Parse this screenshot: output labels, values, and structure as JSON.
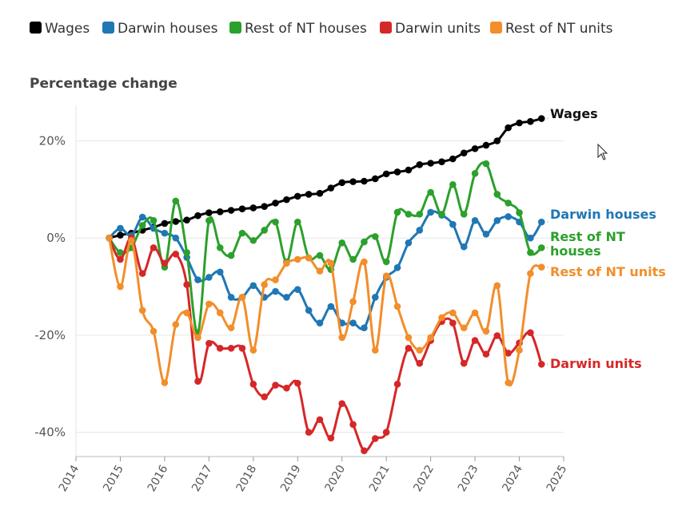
{
  "chart_data": {
    "type": "line",
    "ylabel": "Percentage change",
    "xlabel": "",
    "xlim": [
      2014,
      2025
    ],
    "ylim": [
      -45,
      26
    ],
    "x_ticks": [
      "2014",
      "2015",
      "2016",
      "2017",
      "2018",
      "2019",
      "2020",
      "2021",
      "2022",
      "2023",
      "2024",
      "2025"
    ],
    "y_ticks": [
      {
        "value": 20,
        "label": "20%"
      },
      {
        "value": 0,
        "label": "0%"
      },
      {
        "value": -20,
        "label": "-20%"
      },
      {
        "value": -40,
        "label": "-40%"
      }
    ],
    "legend_position": "top",
    "series": [
      {
        "name": "Wages",
        "end_label": "Wages",
        "color": "#000000",
        "x": [
          2014.75,
          2015.0,
          2015.25,
          2015.5,
          2015.75,
          2016.0,
          2016.25,
          2016.5,
          2016.75,
          2017.0,
          2017.25,
          2017.5,
          2017.75,
          2018.0,
          2018.25,
          2018.5,
          2018.75,
          2019.0,
          2019.25,
          2019.5,
          2019.75,
          2020.0,
          2020.25,
          2020.5,
          2020.75,
          2021.0,
          2021.25,
          2021.5,
          2021.75,
          2022.0,
          2022.25,
          2022.5,
          2022.75,
          2023.0,
          2023.25,
          2023.5,
          2023.75,
          2024.0,
          2024.25,
          2024.5
        ],
        "y": [
          0,
          0.6,
          1.0,
          1.6,
          2.2,
          3.0,
          3.4,
          3.7,
          4.6,
          5.2,
          5.4,
          5.7,
          6.0,
          6.2,
          6.5,
          7.2,
          7.9,
          8.6,
          9.0,
          9.2,
          10.3,
          11.4,
          11.6,
          11.7,
          12.2,
          13.2,
          13.6,
          14.0,
          15.1,
          15.4,
          15.7,
          16.3,
          17.5,
          18.4,
          19.1,
          20.0,
          22.7,
          23.7,
          24.0,
          24.6
        ]
      },
      {
        "name": "Darwin houses",
        "end_label": "Darwin houses",
        "color": "#1f77b4",
        "x": [
          2014.75,
          2015.0,
          2015.25,
          2015.5,
          2015.75,
          2016.0,
          2016.25,
          2016.5,
          2016.75,
          2017.0,
          2017.25,
          2017.5,
          2017.75,
          2018.0,
          2018.25,
          2018.5,
          2018.75,
          2019.0,
          2019.25,
          2019.5,
          2019.75,
          2020.0,
          2020.25,
          2020.5,
          2020.75,
          2021.0,
          2021.25,
          2021.5,
          2021.75,
          2022.0,
          2022.25,
          2022.5,
          2022.75,
          2023.0,
          2023.25,
          2023.5,
          2023.75,
          2024.0,
          2024.25,
          2024.5
        ],
        "y": [
          0,
          2.0,
          0.5,
          4.3,
          2.0,
          1.0,
          0,
          -4.0,
          -8.6,
          -8.1,
          -7.0,
          -12.2,
          -12.2,
          -9.8,
          -12.2,
          -11.0,
          -12.2,
          -10.6,
          -14.9,
          -17.5,
          -14.1,
          -17.5,
          -17.5,
          -18.5,
          -12.2,
          -8.1,
          -6.1,
          -1.0,
          1.6,
          5.3,
          4.7,
          2.8,
          -1.8,
          3.6,
          0.8,
          3.6,
          4.4,
          3.3,
          0,
          3.3
        ]
      },
      {
        "name": "Rest of NT houses",
        "end_label": "Rest of NT houses",
        "color": "#2ca02c",
        "x": [
          2014.75,
          2015.0,
          2015.25,
          2015.5,
          2015.75,
          2016.0,
          2016.25,
          2016.5,
          2016.75,
          2017.0,
          2017.25,
          2017.5,
          2017.75,
          2018.0,
          2018.25,
          2018.5,
          2018.75,
          2019.0,
          2019.25,
          2019.5,
          2019.75,
          2020.0,
          2020.25,
          2020.5,
          2020.75,
          2021.0,
          2021.25,
          2021.5,
          2021.75,
          2022.0,
          2022.25,
          2022.5,
          2022.75,
          2023.0,
          2023.25,
          2023.5,
          2023.75,
          2024.0,
          2024.25,
          2024.5
        ],
        "y": [
          0,
          -3.0,
          -2.0,
          2.6,
          3.6,
          -6.0,
          7.6,
          -3.0,
          -19.5,
          3.6,
          -2.0,
          -3.6,
          1.0,
          -0.5,
          1.6,
          3.3,
          -4.9,
          3.3,
          -4.1,
          -3.6,
          -6.5,
          -1.0,
          -4.4,
          -0.8,
          0.3,
          -4.9,
          5.3,
          4.9,
          4.9,
          9.4,
          4.9,
          11.0,
          4.9,
          13.3,
          15.3,
          9.0,
          7.2,
          5.2,
          -3.0,
          -2.0
        ]
      },
      {
        "name": "Darwin units",
        "end_label": "Darwin units",
        "color": "#d62728",
        "x": [
          2014.75,
          2015.0,
          2015.25,
          2015.5,
          2015.75,
          2016.0,
          2016.25,
          2016.5,
          2016.75,
          2017.0,
          2017.25,
          2017.5,
          2017.75,
          2018.0,
          2018.25,
          2018.5,
          2018.75,
          2019.0,
          2019.25,
          2019.5,
          2019.75,
          2020.0,
          2020.25,
          2020.5,
          2020.75,
          2021.0,
          2021.25,
          2021.5,
          2021.75,
          2022.0,
          2022.25,
          2022.5,
          2022.75,
          2023.0,
          2023.25,
          2023.5,
          2023.75,
          2024.0,
          2024.25,
          2024.5
        ],
        "y": [
          0,
          -4.4,
          0,
          -7.3,
          -2.0,
          -5.2,
          -3.3,
          -9.6,
          -29.5,
          -21.7,
          -22.7,
          -22.7,
          -22.7,
          -30.1,
          -32.7,
          -30.3,
          -30.9,
          -29.9,
          -40.0,
          -37.4,
          -41.2,
          -34.1,
          -38.4,
          -43.8,
          -41.3,
          -40.0,
          -30.1,
          -22.7,
          -25.8,
          -21.1,
          -17.2,
          -17.5,
          -25.8,
          -21.1,
          -23.9,
          -20.1,
          -23.7,
          -21.6,
          -19.5,
          -26.0
        ]
      },
      {
        "name": "Rest of NT units",
        "end_label": "Rest of NT units",
        "color": "#f28e2b",
        "x": [
          2014.75,
          2015.0,
          2015.25,
          2015.5,
          2015.75,
          2016.0,
          2016.25,
          2016.5,
          2016.75,
          2017.0,
          2017.25,
          2017.5,
          2017.75,
          2018.0,
          2018.25,
          2018.5,
          2018.75,
          2019.0,
          2019.25,
          2019.5,
          2019.75,
          2020.0,
          2020.25,
          2020.5,
          2020.75,
          2021.0,
          2021.25,
          2021.5,
          2021.75,
          2022.0,
          2022.25,
          2022.5,
          2022.75,
          2023.0,
          2023.25,
          2023.5,
          2023.75,
          2024.0,
          2024.25,
          2024.5
        ],
        "y": [
          0,
          -10.0,
          -0.5,
          -14.9,
          -19.2,
          -29.8,
          -17.8,
          -15.4,
          -20.5,
          -13.6,
          -15.4,
          -18.5,
          -12.2,
          -23.1,
          -9.6,
          -8.6,
          -5.2,
          -4.4,
          -4.1,
          -6.8,
          -5.2,
          -20.5,
          -13.1,
          -4.9,
          -23.1,
          -7.8,
          -14.1,
          -20.5,
          -23.1,
          -20.5,
          -16.4,
          -15.4,
          -18.5,
          -15.4,
          -19.2,
          -9.8,
          -29.8,
          -23.1,
          -7.3,
          -6.0
        ]
      }
    ]
  }
}
